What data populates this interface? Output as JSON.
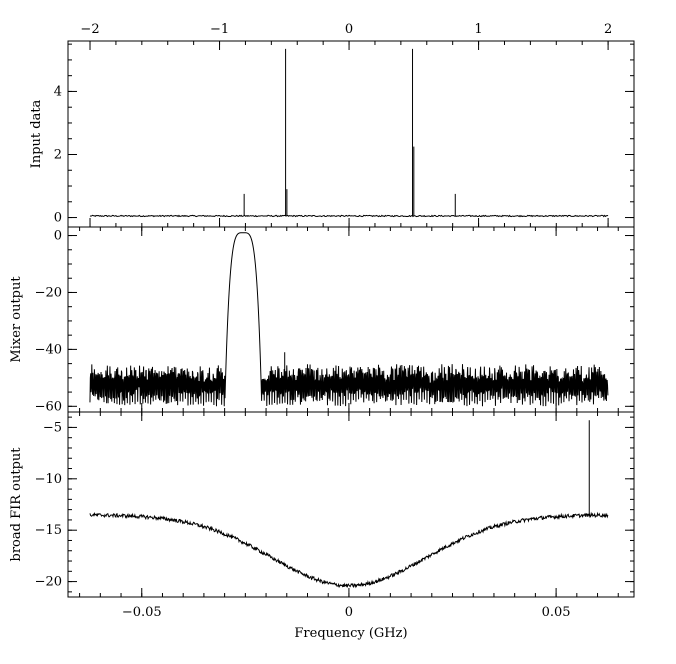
{
  "chart_data": [
    {
      "type": "line",
      "panel": "top",
      "ylabel": "Input data",
      "xlabel": "",
      "xlim": [
        -2.17,
        2.2
      ],
      "ylim": [
        -0.3,
        5.6
      ],
      "xticks": [
        -2,
        -1,
        0,
        1,
        2
      ],
      "xticklabels": [
        "−2",
        "−1",
        "0",
        "1",
        "2"
      ],
      "yticks": [
        0,
        2,
        4
      ],
      "yticklabels": [
        "0",
        "2",
        "4"
      ],
      "tick_position_x": "top",
      "series": [
        {
          "x": [
            -2.0,
            2.0
          ],
          "y_baseline": 0.05,
          "noise": 0.02
        }
      ],
      "spikes": [
        {
          "x": -0.81,
          "y": 0.75
        },
        {
          "x": -0.49,
          "y": 5.35
        },
        {
          "x": -0.48,
          "y": 0.9
        },
        {
          "x": 0.49,
          "y": 5.35
        },
        {
          "x": 0.5,
          "y": 2.25
        },
        {
          "x": 0.82,
          "y": 0.75
        }
      ]
    },
    {
      "type": "line",
      "panel": "middle",
      "ylabel": "Mixer output",
      "xlabel": "",
      "xlim": [
        -0.0678,
        0.0688
      ],
      "ylim": [
        -62,
        3
      ],
      "yticks": [
        0,
        -20,
        -40,
        -60
      ],
      "yticklabels": [
        "0",
        "−20",
        "−40",
        "−60"
      ],
      "passband": {
        "center": -0.0255,
        "halfwidth": 0.0045,
        "peak": 1
      },
      "noise_floor": {
        "top": -48,
        "bottom": -60,
        "x_range": [
          -0.0625,
          0.0625
        ]
      },
      "spur": {
        "x": -0.0155,
        "y": -41
      }
    },
    {
      "type": "line",
      "panel": "bottom",
      "ylabel": "broad FIR output",
      "xlabel": "Frequency (GHz)",
      "xlim": [
        -0.0678,
        0.0688
      ],
      "ylim": [
        -21.5,
        -3.5
      ],
      "xticks": [
        -0.05,
        0,
        0.05
      ],
      "xticklabels": [
        "−0.05",
        "0",
        "0.05"
      ],
      "yticks": [
        -5,
        -10,
        -15,
        -20
      ],
      "yticklabels": [
        "−5",
        "−10",
        "−15",
        "−20"
      ],
      "curve": {
        "edge": -13.5,
        "center": -20.4,
        "x_range": [
          -0.0625,
          0.0625
        ]
      },
      "spike": {
        "x": 0.058,
        "y": -4.3
      }
    }
  ]
}
